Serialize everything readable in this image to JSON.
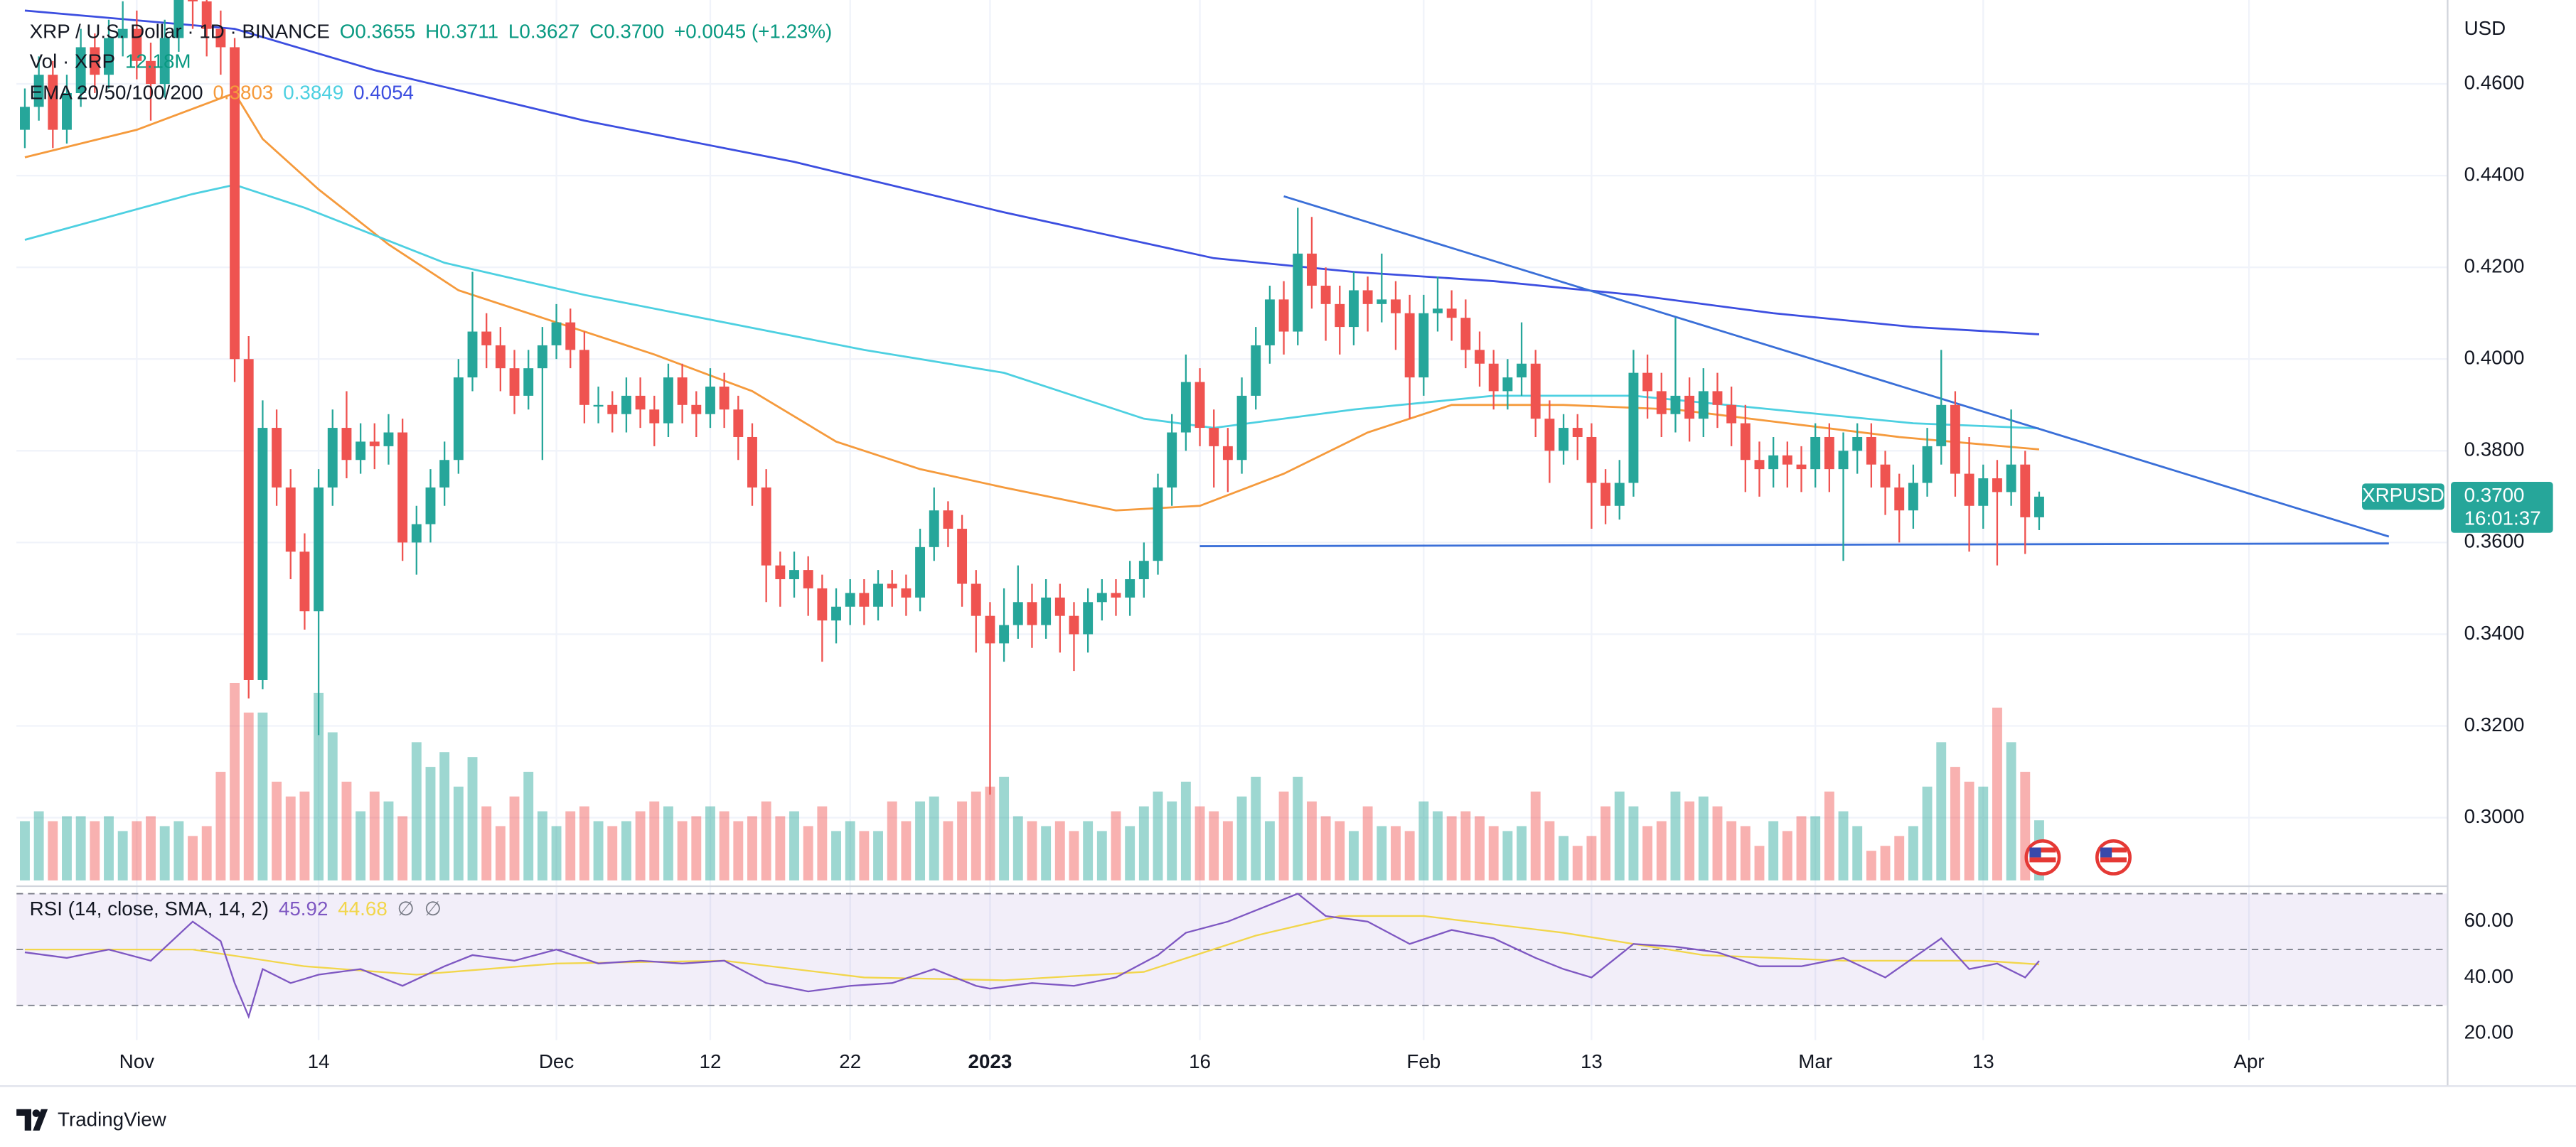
{
  "header": {
    "title": "XRP / U.S. Dollar · 1D · BINANCE",
    "ohlc": [
      "O0.3655",
      "H0.3711",
      "L0.3627",
      "C0.3700",
      "+0.0045 (+1.23%)"
    ],
    "volume_legend": [
      "Vol · XRP",
      "12.18M"
    ],
    "ema_legend": {
      "label": "EMA 20/50/100/200",
      "values": [
        "0.3803",
        "0.3849",
        "0.4054"
      ]
    },
    "rsi_legend": {
      "label": "RSI (14, close, SMA, 14, 2)",
      "values": [
        "45.92",
        "44.68",
        "∅",
        "∅"
      ]
    },
    "currency": "USD",
    "badge": {
      "symbol": "XRPUSD",
      "price": "0.3700",
      "countdown": "16:01:37"
    },
    "brand": "TradingView"
  },
  "chart_data": {
    "type": "candlestick",
    "colors": {
      "up": "#26a69a",
      "down": "#ef5350"
    },
    "grid": true,
    "x": [
      0,
      1,
      2,
      3,
      4,
      5,
      6,
      7,
      8,
      9,
      10,
      11,
      12,
      13,
      14,
      15,
      16,
      17,
      18,
      19,
      20,
      21,
      22,
      23,
      24,
      25,
      26,
      27,
      28,
      29,
      30,
      31,
      32,
      33,
      34,
      35,
      36,
      37,
      38,
      39,
      40,
      41,
      42,
      43,
      44,
      45,
      46,
      47,
      48,
      49,
      50,
      51,
      52,
      53,
      54,
      55,
      56,
      57,
      58,
      59,
      60,
      61,
      62,
      63,
      64,
      65,
      66,
      67,
      68,
      69,
      70,
      71,
      72,
      73,
      74,
      75,
      76,
      77,
      78,
      79,
      80,
      81,
      82,
      83,
      84,
      85,
      86,
      87,
      88,
      89,
      90,
      91,
      92,
      93,
      94,
      95,
      96,
      97,
      98,
      99,
      100,
      101,
      102,
      103,
      104,
      105,
      106,
      107,
      108,
      109,
      110,
      111,
      112,
      113,
      114,
      115,
      116,
      117,
      118,
      119,
      120,
      121,
      122,
      123,
      124,
      125,
      126,
      127,
      128,
      129,
      130,
      131,
      132,
      133,
      134,
      135,
      136,
      137,
      138,
      139,
      140,
      141,
      142,
      143,
      144
    ],
    "open": [
      0.45,
      0.455,
      0.462,
      0.45,
      0.458,
      0.468,
      0.462,
      0.47,
      0.472,
      0.465,
      0.46,
      0.47,
      0.48,
      0.478,
      0.472,
      0.468,
      0.4,
      0.33,
      0.385,
      0.372,
      0.358,
      0.345,
      0.372,
      0.385,
      0.378,
      0.382,
      0.381,
      0.384,
      0.36,
      0.364,
      0.372,
      0.378,
      0.396,
      0.406,
      0.403,
      0.398,
      0.392,
      0.398,
      0.403,
      0.408,
      0.402,
      0.39,
      0.39,
      0.388,
      0.392,
      0.389,
      0.386,
      0.396,
      0.39,
      0.388,
      0.394,
      0.389,
      0.383,
      0.372,
      0.355,
      0.352,
      0.354,
      0.35,
      0.343,
      0.346,
      0.349,
      0.346,
      0.351,
      0.35,
      0.348,
      0.359,
      0.367,
      0.363,
      0.351,
      0.344,
      0.338,
      0.342,
      0.347,
      0.342,
      0.348,
      0.344,
      0.34,
      0.347,
      0.349,
      0.348,
      0.352,
      0.356,
      0.372,
      0.384,
      0.395,
      0.385,
      0.381,
      0.378,
      0.392,
      0.403,
      0.413,
      0.406,
      0.423,
      0.416,
      0.412,
      0.407,
      0.415,
      0.412,
      0.413,
      0.41,
      0.396,
      0.41,
      0.411,
      0.409,
      0.402,
      0.399,
      0.393,
      0.396,
      0.399,
      0.387,
      0.38,
      0.385,
      0.383,
      0.373,
      0.368,
      0.373,
      0.397,
      0.393,
      0.388,
      0.392,
      0.387,
      0.393,
      0.39,
      0.386,
      0.378,
      0.376,
      0.379,
      0.377,
      0.376,
      0.383,
      0.376,
      0.38,
      0.383,
      0.377,
      0.372,
      0.367,
      0.373,
      0.381,
      0.39,
      0.375,
      0.368,
      0.374,
      0.371,
      0.377,
      0.3655
    ],
    "high": [
      0.459,
      0.466,
      0.465,
      0.462,
      0.472,
      0.471,
      0.474,
      0.478,
      0.476,
      0.469,
      0.474,
      0.486,
      0.484,
      0.482,
      0.476,
      0.47,
      0.405,
      0.391,
      0.389,
      0.376,
      0.362,
      0.376,
      0.389,
      0.393,
      0.386,
      0.386,
      0.388,
      0.387,
      0.368,
      0.376,
      0.382,
      0.4,
      0.419,
      0.41,
      0.407,
      0.402,
      0.402,
      0.407,
      0.412,
      0.411,
      0.406,
      0.394,
      0.393,
      0.396,
      0.396,
      0.392,
      0.399,
      0.399,
      0.393,
      0.398,
      0.397,
      0.392,
      0.386,
      0.376,
      0.358,
      0.358,
      0.357,
      0.353,
      0.35,
      0.352,
      0.352,
      0.354,
      0.354,
      0.353,
      0.363,
      0.372,
      0.369,
      0.366,
      0.354,
      0.347,
      0.35,
      0.355,
      0.351,
      0.352,
      0.351,
      0.347,
      0.35,
      0.352,
      0.352,
      0.356,
      0.36,
      0.375,
      0.388,
      0.401,
      0.398,
      0.389,
      0.385,
      0.396,
      0.407,
      0.416,
      0.417,
      0.433,
      0.431,
      0.42,
      0.416,
      0.419,
      0.418,
      0.423,
      0.417,
      0.414,
      0.414,
      0.418,
      0.415,
      0.413,
      0.406,
      0.402,
      0.4,
      0.408,
      0.402,
      0.391,
      0.388,
      0.388,
      0.386,
      0.376,
      0.378,
      0.402,
      0.401,
      0.397,
      0.409,
      0.396,
      0.398,
      0.397,
      0.394,
      0.39,
      0.382,
      0.383,
      0.382,
      0.381,
      0.386,
      0.386,
      0.384,
      0.386,
      0.386,
      0.38,
      0.375,
      0.377,
      0.385,
      0.402,
      0.393,
      0.383,
      0.377,
      0.378,
      0.389,
      0.38,
      0.3711
    ],
    "low": [
      0.446,
      0.452,
      0.446,
      0.447,
      0.455,
      0.458,
      0.459,
      0.466,
      0.461,
      0.452,
      0.457,
      0.467,
      0.472,
      0.466,
      0.462,
      0.395,
      0.326,
      0.328,
      0.368,
      0.352,
      0.341,
      0.318,
      0.368,
      0.374,
      0.375,
      0.376,
      0.377,
      0.356,
      0.353,
      0.36,
      0.368,
      0.375,
      0.393,
      0.398,
      0.393,
      0.388,
      0.389,
      0.378,
      0.4,
      0.398,
      0.386,
      0.386,
      0.384,
      0.384,
      0.385,
      0.381,
      0.383,
      0.386,
      0.383,
      0.385,
      0.385,
      0.378,
      0.368,
      0.347,
      0.346,
      0.348,
      0.344,
      0.334,
      0.338,
      0.342,
      0.342,
      0.343,
      0.346,
      0.344,
      0.345,
      0.356,
      0.359,
      0.346,
      0.336,
      0.305,
      0.334,
      0.339,
      0.337,
      0.339,
      0.336,
      0.332,
      0.336,
      0.343,
      0.344,
      0.344,
      0.348,
      0.353,
      0.368,
      0.38,
      0.381,
      0.372,
      0.371,
      0.375,
      0.389,
      0.399,
      0.401,
      0.403,
      0.411,
      0.404,
      0.401,
      0.403,
      0.406,
      0.408,
      0.402,
      0.387,
      0.392,
      0.406,
      0.404,
      0.398,
      0.394,
      0.389,
      0.389,
      0.392,
      0.383,
      0.373,
      0.377,
      0.378,
      0.363,
      0.364,
      0.365,
      0.37,
      0.387,
      0.383,
      0.384,
      0.382,
      0.383,
      0.385,
      0.381,
      0.371,
      0.37,
      0.372,
      0.372,
      0.371,
      0.372,
      0.371,
      0.356,
      0.375,
      0.372,
      0.366,
      0.36,
      0.363,
      0.37,
      0.377,
      0.37,
      0.358,
      0.363,
      0.355,
      0.368,
      0.3575,
      0.3627
    ],
    "close": [
      0.455,
      0.462,
      0.45,
      0.458,
      0.468,
      0.462,
      0.47,
      0.472,
      0.465,
      0.46,
      0.47,
      0.48,
      0.478,
      0.472,
      0.468,
      0.4,
      0.33,
      0.385,
      0.372,
      0.358,
      0.345,
      0.372,
      0.385,
      0.378,
      0.382,
      0.381,
      0.384,
      0.36,
      0.364,
      0.372,
      0.378,
      0.396,
      0.406,
      0.403,
      0.398,
      0.392,
      0.398,
      0.403,
      0.408,
      0.402,
      0.39,
      0.39,
      0.388,
      0.392,
      0.389,
      0.386,
      0.396,
      0.39,
      0.388,
      0.394,
      0.389,
      0.383,
      0.372,
      0.355,
      0.352,
      0.354,
      0.35,
      0.343,
      0.346,
      0.349,
      0.346,
      0.351,
      0.35,
      0.348,
      0.359,
      0.367,
      0.363,
      0.351,
      0.344,
      0.338,
      0.342,
      0.347,
      0.342,
      0.348,
      0.344,
      0.34,
      0.347,
      0.349,
      0.348,
      0.352,
      0.356,
      0.372,
      0.384,
      0.395,
      0.385,
      0.381,
      0.378,
      0.392,
      0.403,
      0.413,
      0.406,
      0.423,
      0.416,
      0.412,
      0.407,
      0.415,
      0.412,
      0.413,
      0.41,
      0.396,
      0.41,
      0.411,
      0.409,
      0.402,
      0.399,
      0.393,
      0.396,
      0.399,
      0.387,
      0.38,
      0.385,
      0.383,
      0.373,
      0.368,
      0.373,
      0.397,
      0.393,
      0.388,
      0.392,
      0.387,
      0.393,
      0.39,
      0.386,
      0.378,
      0.376,
      0.379,
      0.377,
      0.376,
      0.383,
      0.376,
      0.38,
      0.383,
      0.377,
      0.372,
      0.367,
      0.373,
      0.381,
      0.39,
      0.375,
      0.368,
      0.374,
      0.371,
      0.377,
      0.3655,
      0.37
    ],
    "volume": [
      12,
      14,
      12,
      13,
      13,
      12,
      13,
      10,
      12,
      13,
      11,
      12,
      9,
      11,
      22,
      40,
      34,
      34,
      20,
      17,
      18,
      38,
      30,
      20,
      14,
      18,
      16,
      13,
      28,
      23,
      26,
      19,
      25,
      15,
      11,
      17,
      22,
      14,
      11,
      14,
      15,
      12,
      11,
      12,
      14,
      16,
      15,
      12,
      13,
      15,
      14,
      12,
      13,
      16,
      13,
      14,
      11,
      15,
      10,
      12,
      10,
      10,
      16,
      12,
      16,
      17,
      12,
      16,
      18,
      19,
      21,
      13,
      12,
      11,
      12,
      10,
      12,
      10,
      14,
      11,
      15,
      18,
      16,
      20,
      15,
      14,
      12,
      17,
      21,
      12,
      18,
      21,
      16,
      13,
      12,
      10,
      15,
      11,
      11,
      10,
      16,
      14,
      13,
      14,
      13,
      11,
      10,
      11,
      18,
      12,
      9,
      7,
      9,
      15,
      18,
      15,
      11,
      12,
      18,
      16,
      17,
      15,
      12,
      11,
      7,
      12,
      10,
      13,
      13,
      18,
      14,
      11,
      6,
      7,
      9,
      11,
      19,
      28,
      23,
      20,
      19,
      35,
      28,
      22,
      12.18
    ],
    "xlim": [
      -0.6,
      173.2
    ],
    "xticks": [
      {
        "value": 8,
        "label": "Nov"
      },
      {
        "value": 21,
        "label": "14"
      },
      {
        "value": 38,
        "label": "Dec"
      },
      {
        "value": 49,
        "label": "12"
      },
      {
        "value": 59,
        "label": "22"
      },
      {
        "value": 69,
        "label": "2023"
      },
      {
        "value": 84,
        "label": "16"
      },
      {
        "value": 100,
        "label": "Feb"
      },
      {
        "value": 112,
        "label": "13"
      },
      {
        "value": 128,
        "label": "Mar"
      },
      {
        "value": 140,
        "label": "13"
      },
      {
        "value": 159,
        "label": "Apr"
      }
    ],
    "ylim": [
      0.2856,
      0.4783
    ],
    "yticks": [
      {
        "value": 0.3,
        "label": "0.3000"
      },
      {
        "value": 0.32,
        "label": "0.3200"
      },
      {
        "value": 0.34,
        "label": "0.3400"
      },
      {
        "value": 0.36,
        "label": "0.3600"
      },
      {
        "value": 0.38,
        "label": "0.3800"
      },
      {
        "value": 0.4,
        "label": "0.4000"
      },
      {
        "value": 0.42,
        "label": "0.4200"
      },
      {
        "value": 0.44,
        "label": "0.4400"
      },
      {
        "value": 0.46,
        "label": "0.4600"
      }
    ],
    "lines": [
      {
        "color": "#f59a3c",
        "x": [
          0,
          8,
          15,
          17,
          21,
          26,
          31,
          38,
          45,
          52,
          58,
          64,
          70,
          78,
          84,
          90,
          96,
          102,
          110,
          118,
          126,
          134,
          144
        ],
        "values": [
          0.444,
          0.45,
          0.458,
          0.448,
          0.437,
          0.425,
          0.415,
          0.408,
          0.401,
          0.393,
          0.382,
          0.376,
          0.372,
          0.367,
          0.368,
          0.375,
          0.384,
          0.39,
          0.39,
          0.389,
          0.386,
          0.383,
          0.3803
        ]
      },
      {
        "color": "#4dd0e1",
        "x": [
          0,
          12,
          15,
          20,
          30,
          40,
          50,
          60,
          70,
          80,
          85,
          95,
          105,
          115,
          125,
          135,
          144
        ],
        "values": [
          0.426,
          0.436,
          0.438,
          0.433,
          0.421,
          0.414,
          0.408,
          0.402,
          0.397,
          0.387,
          0.385,
          0.389,
          0.392,
          0.392,
          0.389,
          0.386,
          0.3849
        ]
      },
      {
        "color": "#3c4ee0",
        "x": [
          0,
          15,
          25,
          40,
          55,
          70,
          85,
          95,
          105,
          115,
          125,
          135,
          144
        ],
        "values": [
          0.476,
          0.472,
          0.463,
          0.452,
          0.443,
          0.432,
          0.422,
          0.419,
          0.417,
          0.414,
          0.41,
          0.407,
          0.4054
        ]
      }
    ],
    "trendlines": [
      {
        "color": "#3a6fd8",
        "x": [
          90,
          169
        ],
        "values": [
          0.4355,
          0.3613
        ]
      },
      {
        "color": "#3a6fd8",
        "x": [
          84,
          169
        ],
        "values": [
          0.3592,
          0.3598
        ]
      }
    ],
    "rsi": {
      "ylim": [
        17.6,
        71.8
      ],
      "yticks": [
        {
          "value": 20,
          "label": "20.00"
        },
        {
          "value": 40,
          "label": "40.00"
        },
        {
          "value": 60,
          "label": "60.00"
        }
      ],
      "bands": [
        70,
        50,
        30
      ],
      "series": [
        {
          "color": "#7e57c2",
          "x": [
            0,
            3,
            6,
            9,
            12,
            14,
            15,
            16,
            17,
            19,
            21,
            24,
            27,
            30,
            32,
            35,
            38,
            41,
            44,
            47,
            50,
            53,
            56,
            59,
            62,
            65,
            68,
            69,
            72,
            75,
            78,
            81,
            83,
            86,
            88,
            91,
            93,
            96,
            99,
            102,
            105,
            108,
            110,
            112,
            115,
            118,
            121,
            124,
            127,
            130,
            133,
            137,
            139,
            141,
            143,
            144
          ],
          "values": [
            49,
            47,
            50,
            46,
            60,
            53,
            38,
            26,
            43,
            38,
            41,
            43,
            37,
            44,
            48,
            46,
            50,
            45,
            46,
            45,
            46,
            38,
            35,
            37,
            38,
            43,
            37,
            36,
            38,
            37,
            40,
            48,
            56,
            60,
            64,
            70,
            62,
            60,
            52,
            57,
            54,
            47,
            43,
            40,
            52,
            51,
            49,
            44,
            44,
            47,
            40,
            54,
            43,
            45,
            40,
            45.92
          ]
        },
        {
          "color": "#f2d64b",
          "x": [
            0,
            12,
            20,
            28,
            38,
            50,
            60,
            70,
            80,
            88,
            94,
            100,
            110,
            120,
            130,
            140,
            144
          ],
          "values": [
            50,
            50,
            44,
            41,
            45,
            46,
            40,
            39,
            42,
            55,
            62,
            62,
            56,
            48,
            46,
            46,
            44.68
          ]
        }
      ]
    }
  }
}
